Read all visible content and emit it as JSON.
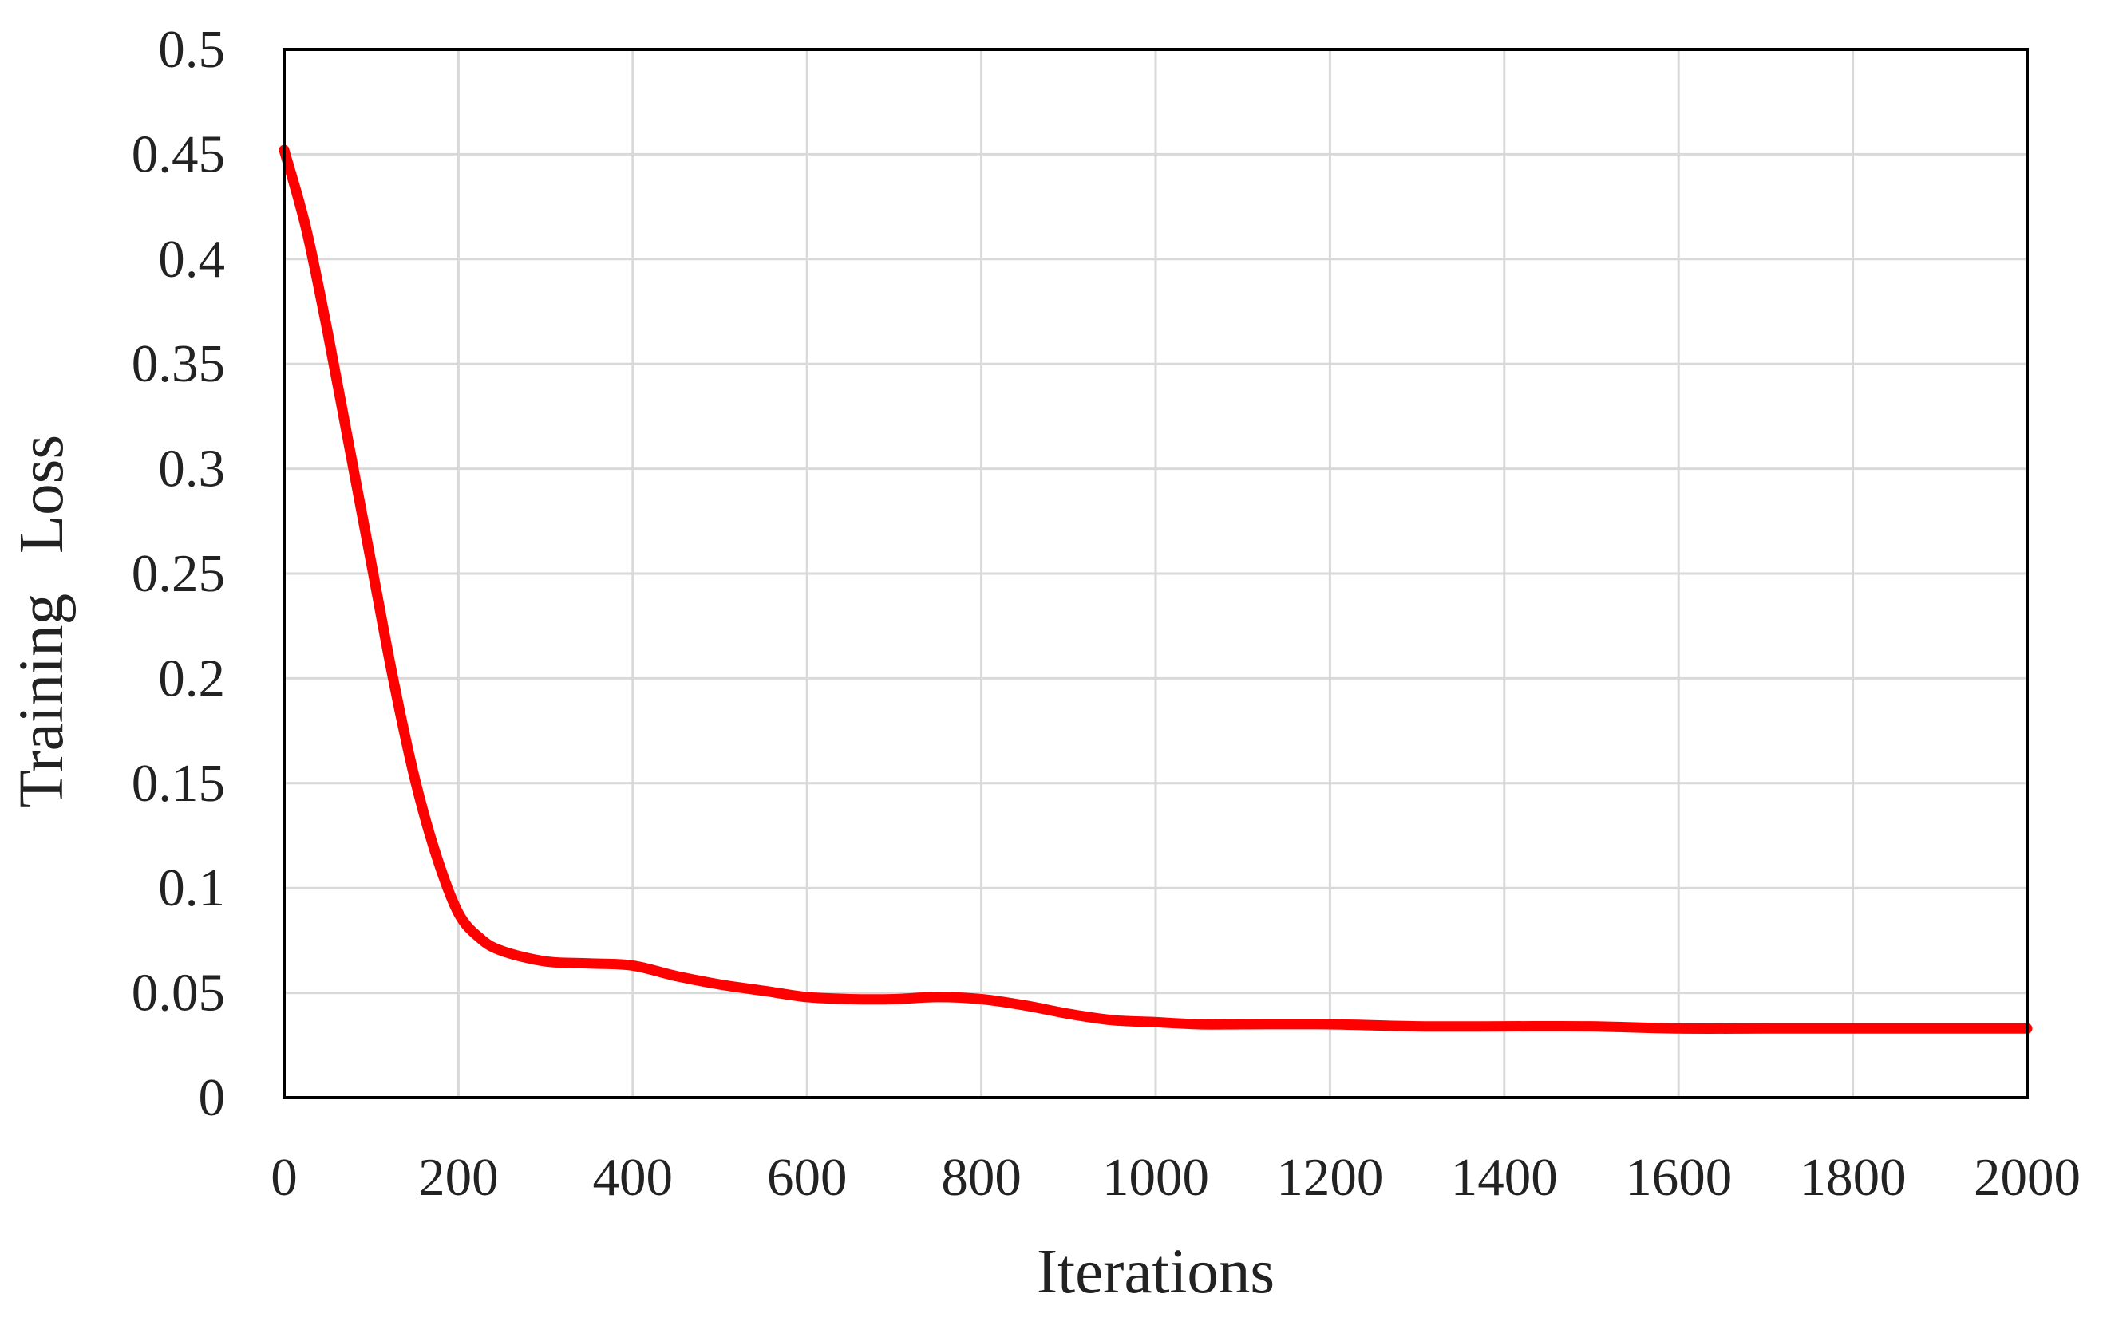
{
  "chart_data": {
    "type": "line",
    "title": "",
    "xlabel": "Iterations",
    "ylabel": "Training Loss",
    "xlim": [
      0,
      2000
    ],
    "ylim": [
      0,
      0.5
    ],
    "x_ticks": [
      "0",
      "200",
      "400",
      "600",
      "800",
      "1000",
      "1200",
      "1400",
      "1600",
      "1800",
      "2000"
    ],
    "y_ticks": [
      "0",
      "0.05",
      "0.1",
      "0.15",
      "0.2",
      "0.25",
      "0.3",
      "0.35",
      "0.4",
      "0.45",
      "0.5"
    ],
    "grid": true,
    "series": [
      {
        "color": "#ff0000",
        "x": [
          0,
          25,
          50,
          75,
          100,
          125,
          150,
          175,
          200,
          225,
          250,
          300,
          350,
          400,
          450,
          500,
          550,
          600,
          650,
          700,
          750,
          800,
          850,
          900,
          950,
          1000,
          1050,
          1100,
          1200,
          1300,
          1400,
          1500,
          1600,
          1700,
          1800,
          1900,
          2000
        ],
        "y": [
          0.452,
          0.415,
          0.365,
          0.31,
          0.255,
          0.2,
          0.152,
          0.115,
          0.088,
          0.076,
          0.07,
          0.065,
          0.064,
          0.063,
          0.058,
          0.054,
          0.051,
          0.048,
          0.047,
          0.047,
          0.048,
          0.047,
          0.044,
          0.04,
          0.037,
          0.036,
          0.035,
          0.035,
          0.035,
          0.034,
          0.034,
          0.034,
          0.033,
          0.033,
          0.033,
          0.033,
          0.033
        ]
      }
    ]
  }
}
